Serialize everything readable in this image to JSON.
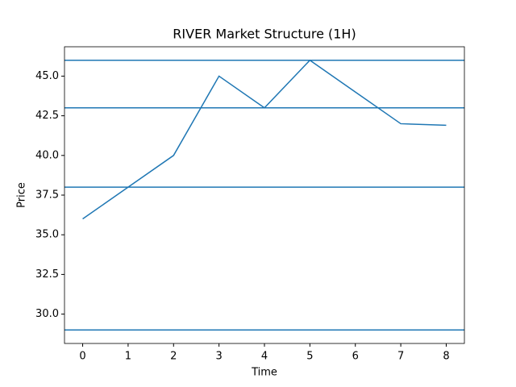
{
  "chart_data": {
    "type": "line",
    "title": "RIVER Market Structure (1H)",
    "xlabel": "Time",
    "ylabel": "Price",
    "x": [
      0,
      1,
      2,
      3,
      4,
      5,
      6,
      7,
      8
    ],
    "series": [
      {
        "color": "#1f77b4",
        "values": [
          36,
          38,
          40,
          45,
          43,
          46,
          44,
          42,
          41.9
        ]
      }
    ],
    "hlines": [
      46,
      43,
      38,
      29
    ],
    "hline_color": "#1f77b4",
    "xlim": [
      -0.4,
      8.4
    ],
    "xticks": [
      0,
      1,
      2,
      3,
      4,
      5,
      6,
      7,
      8
    ],
    "ylim": [
      28.15,
      46.85
    ],
    "yticks": [
      {
        "value": 30,
        "label": "30.0"
      },
      {
        "value": 32.5,
        "label": "32.5"
      },
      {
        "value": 35,
        "label": "35.0"
      },
      {
        "value": 37.5,
        "label": "37.5"
      },
      {
        "value": 40,
        "label": "40.0"
      },
      {
        "value": 42.5,
        "label": "42.5"
      },
      {
        "value": 45,
        "label": "45.0"
      }
    ],
    "grid": false
  }
}
